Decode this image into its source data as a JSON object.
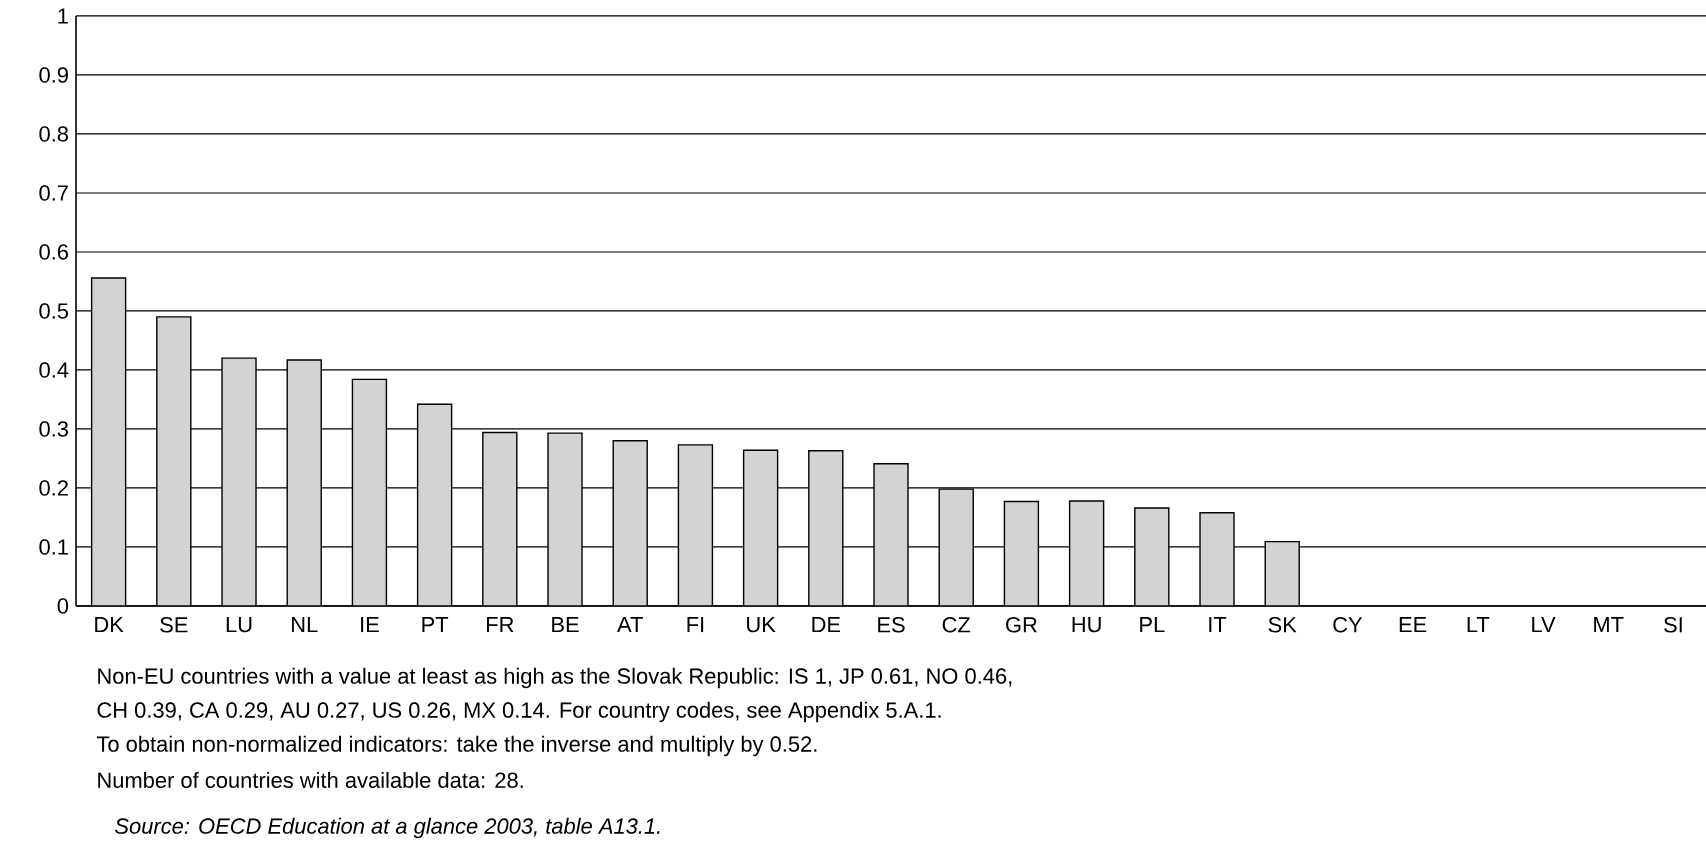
{
  "chart_data": {
    "type": "bar",
    "categories": [
      "DK",
      "SE",
      "LU",
      "NL",
      "IE",
      "PT",
      "FR",
      "BE",
      "AT",
      "FI",
      "UK",
      "DE",
      "ES",
      "CZ",
      "GR",
      "HU",
      "PL",
      "IT",
      "SK",
      "CY",
      "EE",
      "LT",
      "LV",
      "MT",
      "SI"
    ],
    "values": [
      0.556,
      0.49,
      0.42,
      0.417,
      0.384,
      0.342,
      0.294,
      0.293,
      0.28,
      0.273,
      0.264,
      0.263,
      0.241,
      0.198,
      0.177,
      0.178,
      0.166,
      0.158,
      0.109,
      null,
      null,
      null,
      null,
      null,
      null
    ],
    "color": "#d3d3d3",
    "ylim": [
      0,
      1
    ],
    "yticks": [
      0,
      0.1,
      0.2,
      0.3,
      0.4,
      0.5,
      0.6,
      0.7,
      0.8,
      0.9,
      1
    ],
    "grid": "y",
    "annotations": [
      "Non-EU countries with a value at least as high as the Slovak Republic: IS 1, JP 0.61, NO 0.46,",
      "CH 0.39, CA 0.29, AU 0.27, US 0.26, MX 0.14. For country codes, see Appendix 5.A.1.",
      "To obtain non-normalized indicators: take the inverse and multiply by 0.52.",
      "Number of countries with available data: 28.",
      "*Source: OECD Education at a glance 2003, table A13.1.*"
    ]
  }
}
